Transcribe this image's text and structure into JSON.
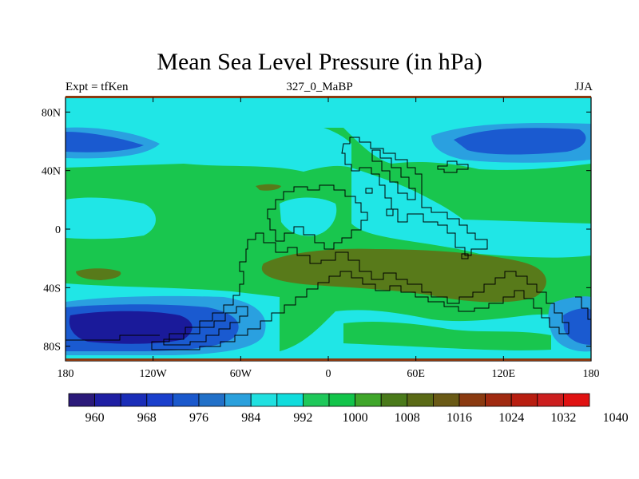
{
  "figure": {
    "title": "Mean Sea Level Pressure (in hPa)",
    "left_label": "Expt = tfKen",
    "center_label": "327_0_MaBP",
    "right_label": "JJA"
  },
  "axes": {
    "x_ticks": [
      "180",
      "120W",
      "60W",
      "0",
      "60E",
      "120E",
      "180"
    ],
    "y_ticks": [
      "80N",
      "40N",
      "0",
      "40S",
      "80S"
    ]
  },
  "colorbar": {
    "colors": [
      "#2b1a7a",
      "#1f1fa3",
      "#1a2db8",
      "#1a3fcc",
      "#1a58cc",
      "#2170c8",
      "#2aa0dc",
      "#20e0e0",
      "#10dcdc",
      "#1ec85a",
      "#12c44a",
      "#3fa62a",
      "#4a7a1a",
      "#5a6a16",
      "#6a5a16",
      "#8a3a10",
      "#a02a10",
      "#b81e10",
      "#cc1e1e",
      "#e01212"
    ],
    "labels": [
      "960",
      "968",
      "976",
      "984",
      "992",
      "1000",
      "1008",
      "1016",
      "1024",
      "1032",
      "1040"
    ]
  },
  "map_colors": {
    "deep_low": "#1a1a9a",
    "low": "#1a5ad0",
    "mid_low": "#2aa0e0",
    "cyan": "#20e6e6",
    "green": "#19c64e",
    "olive": "#587a1a",
    "dark_olive": "#5a5a16",
    "coast": "#000000"
  }
}
